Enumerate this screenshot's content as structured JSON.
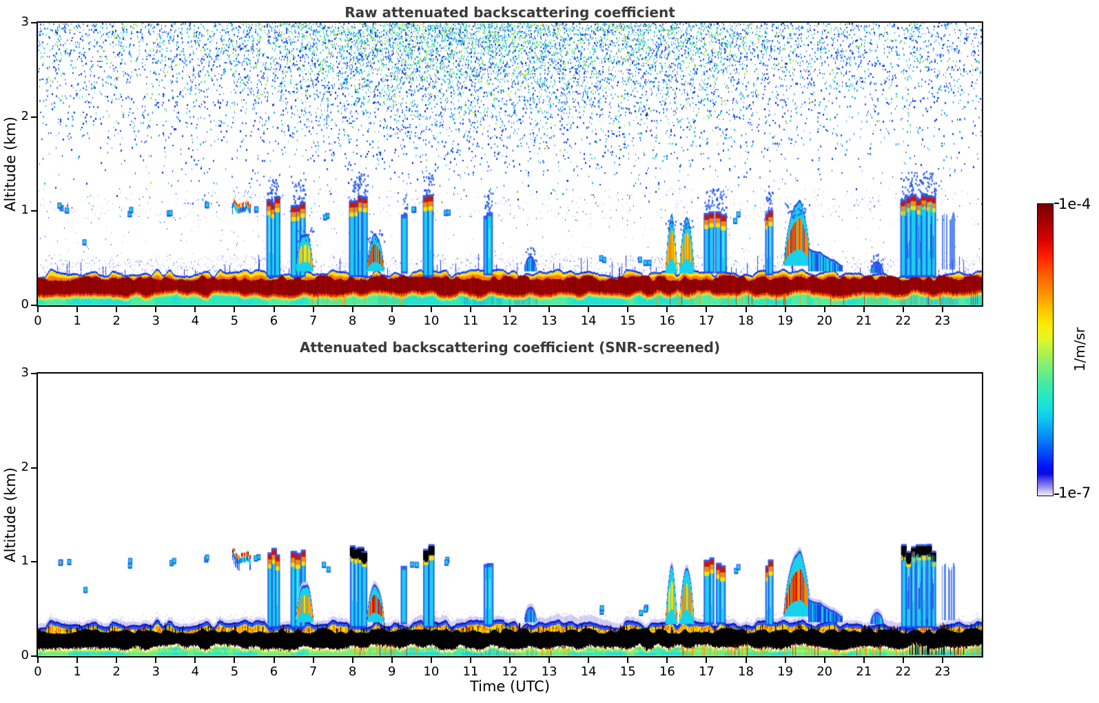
{
  "figure": {
    "panels": [
      {
        "id": "raw",
        "title": "Raw attenuated backscattering coefficient",
        "ylabel": "Altitude (km)",
        "xlim": [
          0,
          24
        ],
        "ylim": [
          0,
          3
        ],
        "xticks": [
          0,
          1,
          2,
          3,
          4,
          5,
          6,
          7,
          8,
          9,
          10,
          11,
          12,
          13,
          14,
          15,
          16,
          17,
          18,
          19,
          20,
          21,
          22,
          23
        ],
        "yticks": [
          0,
          1,
          2,
          3
        ]
      },
      {
        "id": "screened",
        "title": "Attenuated backscattering coefficient (SNR-screened)",
        "ylabel": "Altitude (km)",
        "xlabel": "Time (UTC)",
        "xlim": [
          0,
          24
        ],
        "ylim": [
          0,
          3
        ],
        "xticks": [
          0,
          1,
          2,
          3,
          4,
          5,
          6,
          7,
          8,
          9,
          10,
          11,
          12,
          13,
          14,
          15,
          16,
          17,
          18,
          19,
          20,
          21,
          22,
          23
        ],
        "yticks": [
          0,
          1,
          2,
          3
        ]
      }
    ],
    "colorbar": {
      "label": "1/m/sr",
      "tick_top": "1e-4",
      "tick_bottom": "1e-7",
      "stops": [
        {
          "p": 0.0,
          "c": "#750000"
        },
        {
          "p": 0.06,
          "c": "#a80000"
        },
        {
          "p": 0.12,
          "c": "#d40000"
        },
        {
          "p": 0.18,
          "c": "#ff2000"
        },
        {
          "p": 0.24,
          "c": "#ff5a00"
        },
        {
          "p": 0.3,
          "c": "#ff8c00"
        },
        {
          "p": 0.36,
          "c": "#ffc100"
        },
        {
          "p": 0.41,
          "c": "#ffe900"
        },
        {
          "p": 0.46,
          "c": "#e4f727"
        },
        {
          "p": 0.51,
          "c": "#b0f24f"
        },
        {
          "p": 0.56,
          "c": "#7cee78"
        },
        {
          "p": 0.61,
          "c": "#4aeb9e"
        },
        {
          "p": 0.66,
          "c": "#26e8c4"
        },
        {
          "p": 0.7,
          "c": "#14dfe3"
        },
        {
          "p": 0.74,
          "c": "#0fc4f0"
        },
        {
          "p": 0.78,
          "c": "#0a9cf5"
        },
        {
          "p": 0.82,
          "c": "#0671f8"
        },
        {
          "p": 0.86,
          "c": "#0345fa"
        },
        {
          "p": 0.9,
          "c": "#0114f5"
        },
        {
          "p": 0.925,
          "c": "#0a0ae0"
        },
        {
          "p": 0.95,
          "c": "#5a55e8"
        },
        {
          "p": 0.97,
          "c": "#938ded"
        },
        {
          "p": 0.985,
          "c": "#c5c0f4"
        },
        {
          "p": 1.0,
          "c": "#efeefc"
        }
      ]
    }
  },
  "chart_data": {
    "type": "heatmap",
    "title_top": "Raw attenuated backscattering coefficient",
    "title_bottom": "Attenuated backscattering coefficient (SNR-screened)",
    "xlabel": "Time (UTC)",
    "ylabel": "Altitude (km)",
    "x_range_hours": [
      0,
      24
    ],
    "y_range_km": [
      0,
      3
    ],
    "color_scale": {
      "units": "1/m/sr",
      "max": "1e-4",
      "min": "1e-7",
      "scale": "log"
    },
    "surface_layer": {
      "cap_top_km": 0.345,
      "strong_top_km": 0.29,
      "strong_bottom_km": 0.13,
      "raw_core_color": "#8e0000",
      "screened_core_color": "#000000",
      "orange_streak_windows": [
        [
          6.9,
          9.7
        ],
        [
          15.7,
          20.5
        ],
        [
          20.8,
          24
        ]
      ],
      "screened_orange_windows": [
        [
          7.9,
          9.7
        ],
        [
          12.7,
          13.5
        ],
        [
          16.2,
          20.5
        ],
        [
          20.8,
          24
        ]
      ],
      "blue_cast_windows": [
        [
          10.8,
          12.7
        ],
        [
          21.9,
          23.4
        ]
      ],
      "black_to_ground_window": [
        22.1,
        23.6
      ]
    },
    "noise_field": {
      "panel": "raw",
      "altitude_range_km": [
        0.42,
        3.0
      ],
      "densest_hours": [
        7,
        14
      ],
      "secondary_dense_hours": [
        15.5,
        18
      ],
      "dust_layer_km": [
        0.9,
        1.25
      ]
    },
    "cloud_events": [
      {
        "t0": 0.5,
        "t1": 0.62,
        "top": 1.08,
        "base": 0.98,
        "kind": "dot",
        "s": 0.75
      },
      {
        "t0": 0.7,
        "t1": 0.8,
        "top": 1.02,
        "base": 0.95,
        "kind": "dot",
        "s": 0.4
      },
      {
        "t0": 1.15,
        "t1": 1.22,
        "top": 0.72,
        "base": 0.68,
        "kind": "dot",
        "s": 0.25
      },
      {
        "t0": 2.3,
        "t1": 2.42,
        "top": 1.02,
        "base": 0.96,
        "kind": "dot",
        "s": 0.3
      },
      {
        "t0": 3.3,
        "t1": 3.5,
        "top": 1.05,
        "base": 0.95,
        "kind": "dot",
        "s": 0.45
      },
      {
        "t0": 4.25,
        "t1": 4.4,
        "top": 1.08,
        "base": 1.0,
        "kind": "dot",
        "s": 0.5
      },
      {
        "t0": 4.95,
        "t1": 5.4,
        "top": 1.16,
        "base": 0.96,
        "kind": "cap",
        "s": 0.92
      },
      {
        "t0": 5.5,
        "t1": 5.62,
        "top": 1.06,
        "base": 1.0,
        "kind": "dot",
        "s": 0.4
      },
      {
        "t0": 5.85,
        "t1": 6.15,
        "top": 1.12,
        "base": 0.32,
        "kind": "column",
        "s": 0.85
      },
      {
        "t0": 6.45,
        "t1": 6.8,
        "top": 1.1,
        "base": 0.32,
        "kind": "column",
        "s": 0.9
      },
      {
        "t0": 6.55,
        "t1": 7.0,
        "top": 0.8,
        "base": 0.36,
        "kind": "plume",
        "s": 0.8
      },
      {
        "t0": 7.25,
        "t1": 7.4,
        "top": 1.0,
        "base": 0.9,
        "kind": "dot",
        "s": 0.5
      },
      {
        "t0": 7.95,
        "t1": 8.35,
        "top": 1.16,
        "base": 0.32,
        "kind": "column",
        "s": 1.0
      },
      {
        "t0": 8.35,
        "t1": 8.8,
        "top": 0.78,
        "base": 0.36,
        "kind": "plume",
        "s": 0.9
      },
      {
        "t0": 9.25,
        "t1": 9.38,
        "top": 0.95,
        "base": 0.36,
        "kind": "column",
        "s": 0.5
      },
      {
        "t0": 9.5,
        "t1": 9.65,
        "top": 1.02,
        "base": 0.95,
        "kind": "dot",
        "s": 0.5
      },
      {
        "t0": 9.82,
        "t1": 10.05,
        "top": 1.15,
        "base": 0.32,
        "kind": "column",
        "s": 0.97
      },
      {
        "t0": 10.35,
        "t1": 10.48,
        "top": 1.05,
        "base": 0.99,
        "kind": "dot",
        "s": 0.4
      },
      {
        "t0": 11.35,
        "t1": 11.55,
        "top": 0.97,
        "base": 0.34,
        "kind": "column",
        "s": 0.5
      },
      {
        "t0": 12.35,
        "t1": 12.68,
        "top": 0.56,
        "base": 0.36,
        "kind": "plume",
        "s": 0.45
      },
      {
        "t0": 14.3,
        "t1": 14.45,
        "top": 0.55,
        "base": 0.46,
        "kind": "dot",
        "s": 0.3
      },
      {
        "t0": 15.3,
        "t1": 15.55,
        "top": 0.56,
        "base": 0.42,
        "kind": "dot",
        "s": 0.35
      },
      {
        "t0": 15.95,
        "t1": 16.25,
        "top": 0.95,
        "base": 0.34,
        "kind": "plume",
        "s": 0.72
      },
      {
        "t0": 16.3,
        "t1": 16.68,
        "top": 0.9,
        "base": 0.34,
        "kind": "plume",
        "s": 0.78
      },
      {
        "t0": 16.95,
        "t1": 17.2,
        "top": 1.02,
        "base": 0.36,
        "kind": "column",
        "s": 0.8
      },
      {
        "t0": 17.25,
        "t1": 17.48,
        "top": 1.0,
        "base": 0.36,
        "kind": "column",
        "s": 0.75
      },
      {
        "t0": 17.7,
        "t1": 17.82,
        "top": 0.97,
        "base": 0.9,
        "kind": "dot",
        "s": 0.4
      },
      {
        "t0": 18.5,
        "t1": 18.68,
        "top": 1.0,
        "base": 0.34,
        "kind": "column",
        "s": 0.7
      },
      {
        "t0": 18.95,
        "t1": 19.65,
        "top": 1.1,
        "base": 0.42,
        "kind": "plume",
        "s": 0.95
      },
      {
        "t0": 19.6,
        "t1": 20.45,
        "top": 0.62,
        "base": 0.36,
        "kind": "tail",
        "s": 0.5
      },
      {
        "t0": 21.15,
        "t1": 21.5,
        "top": 0.48,
        "base": 0.34,
        "kind": "plume",
        "s": 0.35
      },
      {
        "t0": 21.95,
        "t1": 22.85,
        "top": 1.15,
        "base": 0.32,
        "kind": "cluster",
        "s": 1.0
      },
      {
        "t0": 23.0,
        "t1": 23.3,
        "top": 0.92,
        "base": 0.38,
        "kind": "wisp",
        "s": 0.4
      }
    ]
  }
}
